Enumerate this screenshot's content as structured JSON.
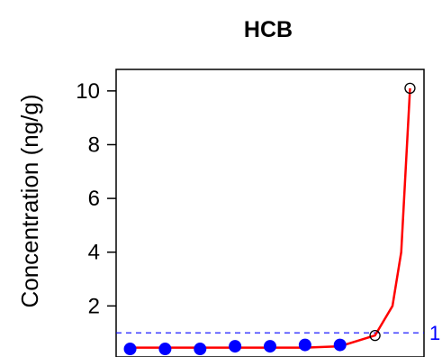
{
  "chart_data": {
    "type": "scatter",
    "title": "HCB",
    "xlabel": "",
    "ylabel": "Concentration (ng/g)",
    "ylim": [
      0.1,
      10.8
    ],
    "xlim": [
      0.6,
      9.4
    ],
    "yticks": [
      2,
      4,
      6,
      8,
      10
    ],
    "ytick_labels": [
      "2",
      "4",
      "6",
      "8",
      "10"
    ],
    "grid": false,
    "legend": "none",
    "reference_line": {
      "y": 1,
      "label": "1",
      "color": "#0000ff",
      "style": "dashed"
    },
    "fit_curve": {
      "color": "#ff0000",
      "x": [
        1,
        2,
        3,
        4,
        5,
        6,
        7,
        8,
        8.5,
        8.75,
        9
      ],
      "y": [
        0.45,
        0.45,
        0.45,
        0.45,
        0.45,
        0.45,
        0.5,
        0.9,
        2.0,
        4.0,
        10.1
      ]
    },
    "series": [
      {
        "marker": "filled-circle",
        "color": "#0000ff",
        "x": [
          1,
          2,
          3,
          4,
          5,
          6,
          7
        ],
        "y": [
          0.4,
          0.4,
          0.4,
          0.5,
          0.5,
          0.55,
          0.55
        ]
      },
      {
        "marker": "open-circle",
        "color": "#000000",
        "x": [
          8,
          9
        ],
        "y": [
          0.9,
          10.1
        ]
      }
    ]
  }
}
